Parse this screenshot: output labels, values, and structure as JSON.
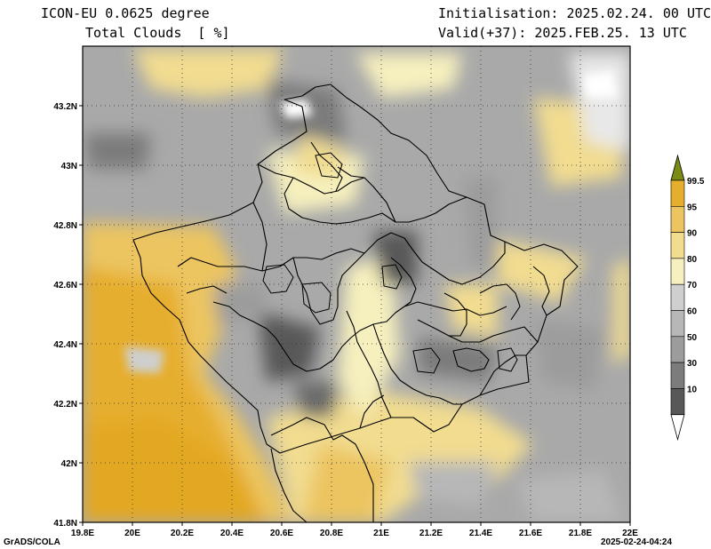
{
  "header": {
    "model": "ICON-EU 0.0625 degree",
    "field": "Total Clouds  [ %]",
    "init": "Initialisation: 2025.02.24. 00 UTC",
    "valid": "Valid(+37): 2025.FEB.25. 13 UTC"
  },
  "axes": {
    "lat_ticks": [
      "43.2N",
      "43N",
      "42.8N",
      "42.6N",
      "42.4N",
      "42.2N",
      "42N",
      "41.8N"
    ],
    "lat_values": [
      43.2,
      43.0,
      42.8,
      42.6,
      42.4,
      42.2,
      42.0,
      41.8
    ],
    "lon_ticks": [
      "19.8E",
      "20E",
      "20.2E",
      "20.4E",
      "20.6E",
      "20.8E",
      "21E",
      "21.2E",
      "21.4E",
      "21.6E",
      "21.8E",
      "22E"
    ],
    "lon_values": [
      19.8,
      20.0,
      20.2,
      20.4,
      20.6,
      20.8,
      21.0,
      21.2,
      21.4,
      21.6,
      21.8,
      22.0
    ],
    "lat_range": [
      41.8,
      43.4
    ],
    "lon_range": [
      19.8,
      22.0
    ]
  },
  "colorbar": {
    "labels": [
      "99.5",
      "95",
      "90",
      "80",
      "70",
      "60",
      "50",
      "30",
      "10"
    ],
    "colors": [
      "#7a8a14",
      "#e6ae2e",
      "#ecc560",
      "#f1dc90",
      "#f6f0be",
      "#cfcfcf",
      "#b7b7b7",
      "#9c9c9c",
      "#7c7c7c",
      "#585858",
      "#ffffff"
    ]
  },
  "footer": {
    "left": "GrADS/COLA",
    "right": "2025-02-24-04:24"
  }
}
